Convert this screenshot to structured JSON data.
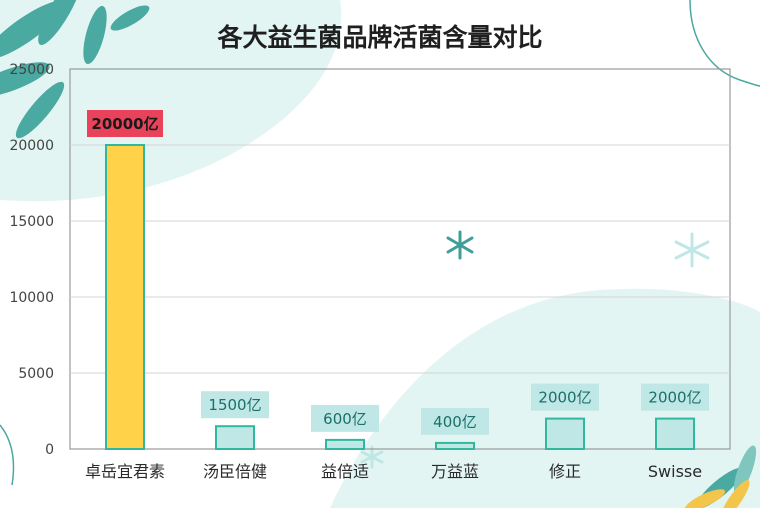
{
  "chart_data": {
    "type": "bar",
    "title": "各大益生菌品牌活菌含量对比",
    "xlabel": "",
    "ylabel": "",
    "ylim": [
      0,
      25000
    ],
    "yticks": [
      "0",
      "5000",
      "10000",
      "15000",
      "20000",
      "25000"
    ],
    "grid": true,
    "categories": [
      "卓岳宜君素",
      "汤臣倍健",
      "益倍适",
      "万益蓝",
      "修正",
      "Swisse"
    ],
    "values": [
      20000,
      1500,
      600,
      400,
      2000,
      2000
    ],
    "data_labels": [
      "20000亿",
      "1500亿",
      "600亿",
      "400亿",
      "2000亿",
      "2000亿"
    ],
    "colors": {
      "highlight_bar": "#ffd24a",
      "bar": "#bfe7e6",
      "bar_border": "#2fb89e",
      "highlight_label_bg": "#e8435a",
      "label_bg": "#bfe7e6",
      "label_text": "#1b6f6a",
      "grid": "#d5d5d5",
      "axis_text": "#444444"
    }
  }
}
